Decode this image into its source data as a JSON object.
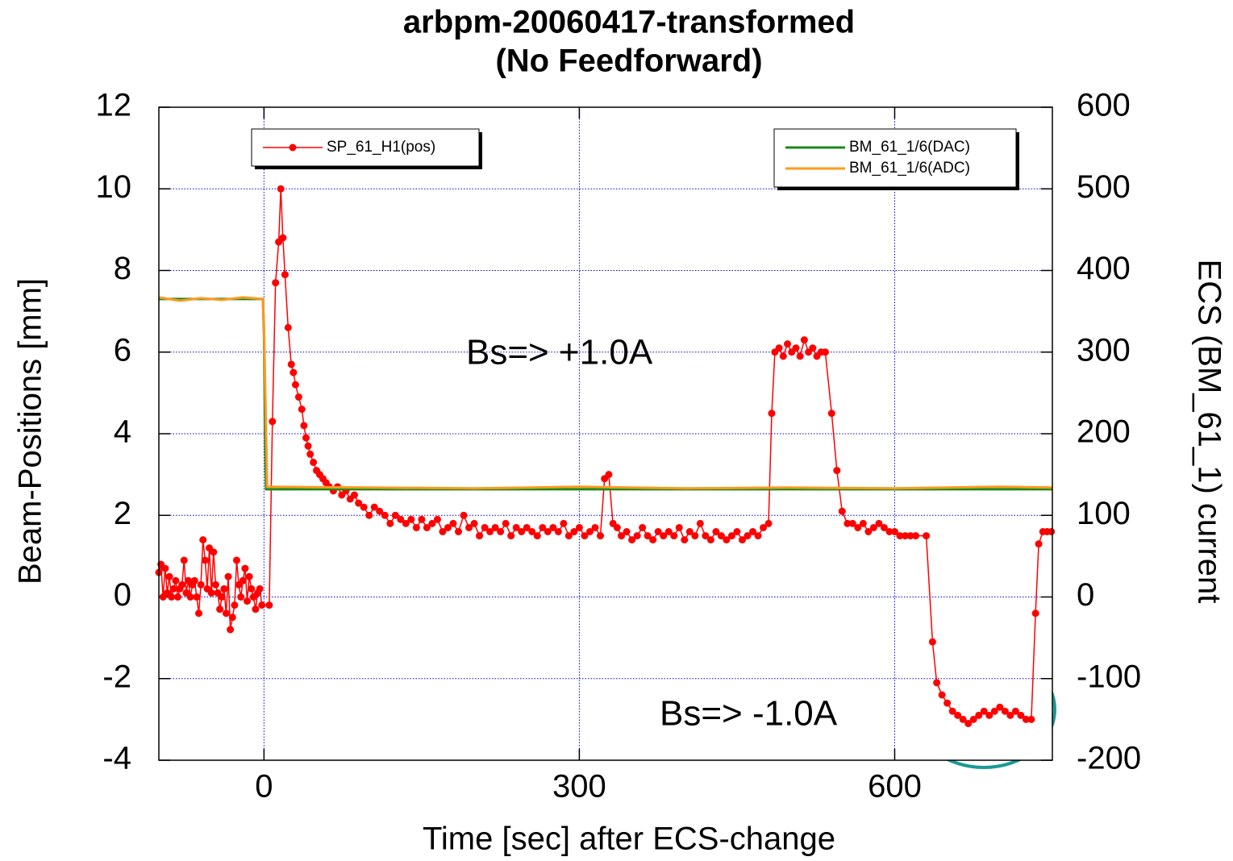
{
  "chart_data": {
    "type": "line",
    "title": "arbpm-20060417-transformed",
    "subtitle": "(No Feedforward)",
    "x_label": "Time [sec] after ECS-change",
    "y_label": "Beam-Positions [mm]",
    "y2_label": "ECS (BM_61_1) current",
    "xlim": [
      -100,
      750
    ],
    "xticks": [
      0,
      300,
      600
    ],
    "ylim": [
      -4,
      12
    ],
    "yticks": [
      -4,
      -2,
      0,
      2,
      4,
      6,
      8,
      10,
      12
    ],
    "y2lim": [
      -200,
      600
    ],
    "y2ticks": [
      -200,
      -100,
      0,
      100,
      200,
      300,
      400,
      500,
      600
    ],
    "grid": true,
    "annotations": [
      "Bs=> +1.0A",
      "Bs=> -1.0A"
    ],
    "series": [
      {
        "name": "SP_61_H1(pos)",
        "color": "#ff0000",
        "axis": "y",
        "marker": true,
        "x": [
          -100,
          -98,
          -96,
          -94,
          -92,
          -90,
          -88,
          -86,
          -84,
          -82,
          -80,
          -78,
          -76,
          -74,
          -72,
          -70,
          -68,
          -66,
          -64,
          -62,
          -60,
          -58,
          -56,
          -54,
          -52,
          -50,
          -48,
          -46,
          -44,
          -42,
          -40,
          -38,
          -36,
          -34,
          -32,
          -30,
          -28,
          -26,
          -24,
          -22,
          -20,
          -18,
          -16,
          -14,
          -12,
          -10,
          -8,
          -6,
          -4,
          -2,
          5,
          8,
          11,
          14,
          16,
          18,
          20,
          23,
          26,
          28,
          30,
          33,
          36,
          38,
          40,
          42,
          44,
          47,
          50,
          53,
          56,
          59,
          62,
          66,
          70,
          74,
          78,
          82,
          86,
          90,
          95,
          100,
          105,
          110,
          115,
          120,
          125,
          130,
          135,
          140,
          145,
          150,
          155,
          160,
          165,
          170,
          175,
          180,
          185,
          190,
          195,
          200,
          205,
          210,
          215,
          220,
          225,
          230,
          235,
          240,
          245,
          250,
          255,
          260,
          265,
          270,
          275,
          280,
          285,
          290,
          295,
          300,
          305,
          310,
          315,
          320,
          324,
          328,
          332,
          336,
          340,
          345,
          350,
          355,
          360,
          365,
          370,
          375,
          380,
          385,
          390,
          395,
          400,
          405,
          410,
          415,
          420,
          425,
          430,
          435,
          440,
          445,
          450,
          455,
          460,
          465,
          470,
          475,
          480,
          483,
          486,
          490,
          494,
          498,
          502,
          506,
          510,
          514,
          518,
          522,
          526,
          530,
          534,
          540,
          545,
          550,
          555,
          560,
          565,
          570,
          575,
          580,
          585,
          590,
          595,
          600,
          605,
          610,
          615,
          620,
          630,
          636,
          640,
          645,
          650,
          655,
          660,
          665,
          670,
          675,
          680,
          685,
          690,
          695,
          700,
          705,
          710,
          715,
          720,
          725,
          730,
          734,
          737,
          741,
          745,
          749
        ],
        "values": [
          0.6,
          0.8,
          0.0,
          0.7,
          0.1,
          0.5,
          0.0,
          0.2,
          0.4,
          0.0,
          0.2,
          0.3,
          0.9,
          0.1,
          0.4,
          0.0,
          0.3,
          0.4,
          0.0,
          -0.4,
          0.3,
          1.4,
          0.9,
          0.2,
          1.2,
          0.1,
          1.1,
          0.3,
          0.1,
          -0.3,
          0.0,
          0.2,
          -0.4,
          0.5,
          -0.8,
          -0.5,
          -0.2,
          0.9,
          0.3,
          0.0,
          0.4,
          0.7,
          -0.1,
          0.5,
          0.2,
          0.0,
          -0.3,
          0.1,
          0.2,
          -0.2,
          -0.2,
          4.3,
          7.7,
          8.7,
          10.0,
          8.8,
          7.9,
          6.6,
          5.7,
          5.5,
          5.2,
          4.9,
          4.6,
          4.2,
          3.9,
          3.7,
          3.5,
          3.3,
          3.1,
          3.0,
          2.9,
          2.8,
          2.7,
          2.6,
          2.7,
          2.5,
          2.6,
          2.4,
          2.5,
          2.3,
          2.2,
          2.0,
          2.2,
          2.1,
          2.0,
          1.8,
          2.0,
          1.9,
          1.8,
          1.9,
          1.7,
          1.9,
          1.7,
          1.8,
          1.9,
          1.6,
          1.7,
          1.8,
          1.6,
          2.0,
          1.7,
          1.8,
          1.5,
          1.7,
          1.6,
          1.7,
          1.6,
          1.8,
          1.5,
          1.7,
          1.6,
          1.7,
          1.6,
          1.5,
          1.7,
          1.6,
          1.7,
          1.6,
          1.8,
          1.5,
          1.6,
          1.7,
          1.5,
          1.6,
          1.7,
          1.5,
          2.9,
          3.0,
          1.8,
          1.7,
          1.5,
          1.6,
          1.4,
          1.5,
          1.7,
          1.5,
          1.4,
          1.6,
          1.5,
          1.6,
          1.5,
          1.7,
          1.4,
          1.6,
          1.5,
          1.8,
          1.5,
          1.4,
          1.6,
          1.5,
          1.4,
          1.5,
          1.6,
          1.4,
          1.5,
          1.6,
          1.5,
          1.7,
          1.8,
          4.5,
          6.0,
          6.1,
          5.9,
          6.2,
          6.0,
          6.1,
          5.9,
          6.3,
          6.0,
          6.1,
          5.9,
          6.0,
          6.0,
          4.5,
          3.1,
          2.1,
          1.8,
          1.8,
          1.7,
          1.8,
          1.6,
          1.7,
          1.8,
          1.7,
          1.6,
          1.6,
          1.5,
          1.5,
          1.5,
          1.5,
          1.5,
          -1.1,
          -2.1,
          -2.4,
          -2.6,
          -2.8,
          -2.9,
          -3.0,
          -3.1,
          -3.0,
          -2.9,
          -2.8,
          -2.9,
          -2.8,
          -2.7,
          -2.8,
          -2.9,
          -2.8,
          -2.9,
          -3.0,
          -3.0,
          -0.4,
          1.3,
          1.6,
          1.6,
          1.6
        ]
      },
      {
        "name": "BM_61_1/6(DAC)",
        "color": "#1a8a1a",
        "axis": "y2",
        "marker": false,
        "x": [
          -100,
          -1,
          0,
          1,
          2,
          750
        ],
        "values": [
          365,
          365,
          320,
          200,
          132,
          132
        ]
      },
      {
        "name": "BM_61_1/6(ADC)",
        "color": "#ff9a1f",
        "axis": "y2",
        "marker": false,
        "x": [
          -100,
          -80,
          -60,
          -40,
          -20,
          -1,
          0,
          3,
          100,
          200,
          300,
          400,
          500,
          600,
          700,
          750
        ],
        "values": [
          367,
          363,
          366,
          364,
          367,
          365,
          330,
          135,
          134,
          133,
          135,
          133,
          134,
          133,
          135,
          134
        ]
      }
    ]
  }
}
